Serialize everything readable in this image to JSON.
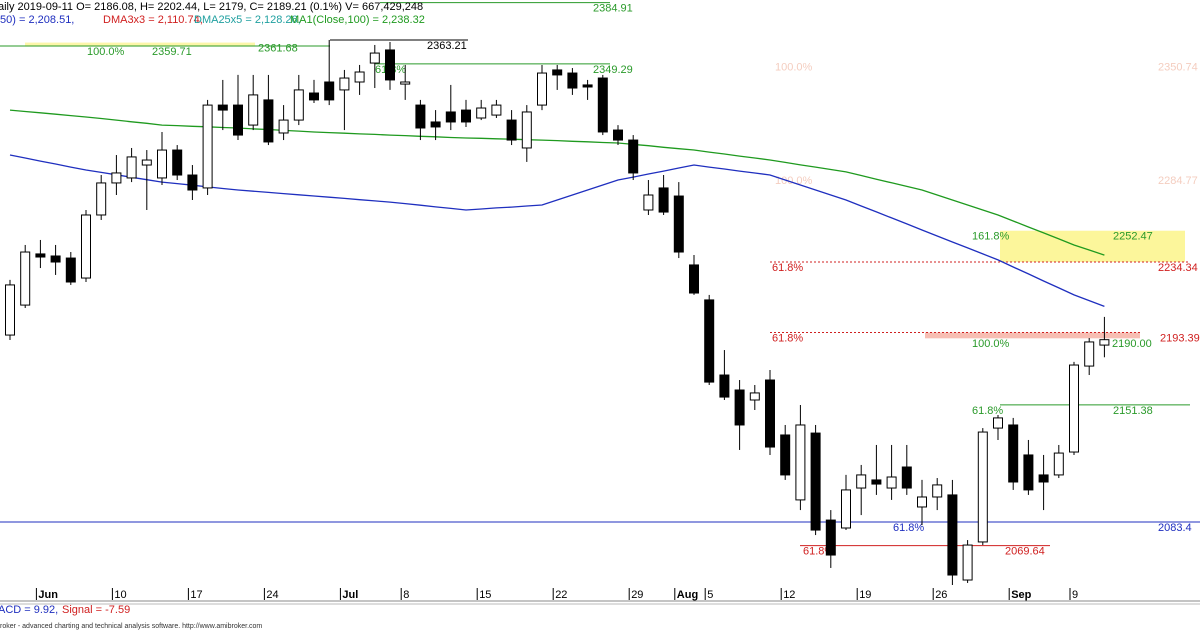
{
  "chart_data": {
    "type": "candlestick",
    "header": {
      "quote": "aily 2019-09-11 O= 2186.08, H= 2202.44, L= 2179, C= 2189.21 (0.1%) V= 667,429,248",
      "indicators": [
        {
          "text": ",50) = 2,208.51,",
          "color": "#1f2fbf"
        },
        {
          "text": "DMA3x3 = 2,110.74,",
          "color": "#d02020"
        },
        {
          "text": "DMA25x5 = 2,128.26,",
          "color": "#20a0a0"
        },
        {
          "text": "MA1(Close,100) = 2,238.32",
          "color": "#1f9a1f"
        }
      ]
    },
    "macd": [
      {
        "text": "ACD = 9.92,",
        "color": "#1f2fbf"
      },
      {
        "text": "Signal = -7.59",
        "color": "#d02020"
      }
    ],
    "footer": "roker - advanced charting and technical analysis software. http://www.amibroker.com",
    "categories": [
      null,
      null,
      "Jun",
      null,
      null,
      null,
      null,
      "10",
      null,
      null,
      null,
      null,
      "17",
      null,
      null,
      null,
      null,
      "24",
      null,
      null,
      null,
      null,
      "Jul",
      null,
      null,
      null,
      "8",
      null,
      null,
      null,
      null,
      "15",
      null,
      null,
      null,
      null,
      "22",
      null,
      null,
      null,
      null,
      "29",
      null,
      null,
      "Aug",
      null,
      "5",
      null,
      null,
      null,
      null,
      "12",
      null,
      null,
      null,
      null,
      "19",
      null,
      null,
      null,
      null,
      "26",
      null,
      null,
      null,
      null,
      "Sep",
      null,
      null,
      null,
      "9",
      null,
      null
    ],
    "open": [
      2191.9,
      2209.3,
      2239.0,
      2237.8,
      2236.6,
      2225.0,
      2261.6,
      2280.2,
      2283.1,
      2290.6,
      2283.1,
      2299.3,
      2284.8,
      2277.3,
      2325.4,
      2325.4,
      2313.8,
      2328.4,
      2309.2,
      2316.7,
      2332.4,
      2338.8,
      2334.2,
      2338.8,
      2349.8,
      2357.4,
      2337.6,
      2325.4,
      2315.6,
      2321.4,
      2322.5,
      2317.9,
      2319.6,
      2316.7,
      2300.5,
      2325.4,
      2345.8,
      2344.0,
      2337.1,
      2341.1,
      2310.9,
      2305.1,
      2264.5,
      2277.3,
      2272.6,
      2232.6,
      2212.3,
      2168.7,
      2160.0,
      2154.2,
      2165.8,
      2133.9,
      2096.2,
      2135.0,
      2084.5,
      2079.9,
      2103.1,
      2107.8,
      2103.1,
      2115.3,
      2092.1,
      2097.9,
      2099.1,
      2049.7,
      2071.8,
      2137.9,
      2139.7,
      2122.3,
      2110.7,
      2110.7,
      2124.0,
      2173.9,
      2186.08
    ],
    "high": [
      2223.9,
      2244.2,
      2247.1,
      2244.2,
      2240.1,
      2264.5,
      2284.8,
      2296.4,
      2300.5,
      2299.3,
      2309.8,
      2302.2,
      2290.6,
      2328.4,
      2340.0,
      2342.9,
      2342.9,
      2342.9,
      2325.4,
      2342.9,
      2340.0,
      2363.2,
      2345.8,
      2348.7,
      2360.3,
      2362.0,
      2348.7,
      2328.4,
      2322.5,
      2337.1,
      2328.4,
      2328.4,
      2328.4,
      2322.5,
      2325.4,
      2348.7,
      2348.7,
      2346.9,
      2340.0,
      2342.9,
      2313.8,
      2308.0,
      2281.9,
      2284.8,
      2280.7,
      2238.4,
      2215.2,
      2183.2,
      2165.8,
      2162.9,
      2171.6,
      2139.7,
      2151.3,
      2139.7,
      2090.3,
      2110.7,
      2116.5,
      2128.1,
      2128.1,
      2128.1,
      2107.8,
      2108.9,
      2107.8,
      2072.9,
      2137.9,
      2145.5,
      2143.8,
      2131.0,
      2122.3,
      2128.1,
      2176.3,
      2190.2,
      2202.44
    ],
    "low": [
      2189.0,
      2207.6,
      2230.8,
      2226.8,
      2221.0,
      2222.7,
      2258.7,
      2273.2,
      2280.7,
      2264.5,
      2279.0,
      2281.9,
      2270.3,
      2273.2,
      2310.9,
      2305.1,
      2310.9,
      2302.2,
      2305.1,
      2313.8,
      2326.6,
      2325.4,
      2310.9,
      2331.3,
      2335.3,
      2334.2,
      2328.4,
      2305.1,
      2305.1,
      2310.9,
      2312.7,
      2316.7,
      2317.9,
      2302.2,
      2292.4,
      2322.5,
      2334.2,
      2331.3,
      2328.4,
      2308.0,
      2302.2,
      2281.9,
      2261.6,
      2261.6,
      2236.6,
      2215.2,
      2162.9,
      2154.2,
      2125.2,
      2148.4,
      2122.3,
      2107.8,
      2090.3,
      2075.8,
      2056.7,
      2078.7,
      2087.4,
      2099.1,
      2096.2,
      2099.1,
      2081.6,
      2090.3,
      2046.8,
      2048.0,
      2070.0,
      2131.0,
      2102.0,
      2099.1,
      2090.3,
      2108.9,
      2122.3,
      2168.7,
      2179
    ],
    "close": [
      2221.0,
      2240.1,
      2237.2,
      2234.3,
      2222.7,
      2261.6,
      2280.2,
      2286.0,
      2295.3,
      2293.5,
      2299.3,
      2284.8,
      2276.1,
      2325.4,
      2322.5,
      2308.0,
      2331.3,
      2304.0,
      2316.7,
      2334.2,
      2328.4,
      2328.4,
      2341.1,
      2344.6,
      2355.6,
      2340.0,
      2338.8,
      2312.1,
      2312.7,
      2315.6,
      2315.6,
      2323.7,
      2325.4,
      2305.1,
      2321.4,
      2344.0,
      2342.9,
      2335.3,
      2335.9,
      2309.8,
      2305.1,
      2286.0,
      2273.2,
      2263.3,
      2240.1,
      2216.3,
      2164.6,
      2155.9,
      2139.7,
      2158.3,
      2126.9,
      2110.7,
      2139.7,
      2078.7,
      2064.2,
      2102.0,
      2110.7,
      2105.4,
      2109.5,
      2103.1,
      2097.9,
      2104.9,
      2052.6,
      2070.0,
      2135.6,
      2143.8,
      2106.6,
      2102.0,
      2106.6,
      2123.4,
      2174.5,
      2187.9,
      2189.21
    ],
    "lines": [
      {
        "color": "#1f9a1f",
        "values": [
          2322.5,
          2321.7,
          2320.9,
          2320.1,
          2319.3,
          2318.5,
          2317.6,
          2316.7,
          2315.7,
          2314.8,
          2313.8,
          2313.5,
          2313.1,
          2312.8,
          2312.4,
          2312.1,
          2311.6,
          2311.2,
          2310.7,
          2310.3,
          2309.8,
          2309.4,
          2309.1,
          2308.7,
          2308.4,
          2308.0,
          2307.7,
          2307.3,
          2307.0,
          2306.6,
          2306.3,
          2306.1,
          2305.8,
          2305.6,
          2305.3,
          2305.1,
          2304.8,
          2304.4,
          2304.1,
          2303.7,
          2303.4,
          2302.6,
          2301.8,
          2300.9,
          2300.1,
          2299.3,
          2298.1,
          2297.0,
          2295.8,
          2294.7,
          2293.5,
          2292.1,
          2290.7,
          2289.4,
          2288.0,
          2286.6,
          2284.5,
          2282.4,
          2280.3,
          2278.2,
          2276.1,
          2273.2,
          2270.3,
          2267.4,
          2264.5,
          2261.6,
          2258.1,
          2254.6,
          2251.2,
          2247.7,
          2244.2,
          2241.3,
          2238.32
        ]
      },
      {
        "color": "#1f2fbf",
        "values": [
          2296.4,
          2294.7,
          2292.9,
          2291.2,
          2289.4,
          2287.7,
          2286.3,
          2284.9,
          2283.5,
          2282.1,
          2280.7,
          2279.8,
          2278.9,
          2277.9,
          2277.0,
          2276.1,
          2275.4,
          2274.7,
          2274.0,
          2273.3,
          2272.6,
          2271.9,
          2271.2,
          2270.5,
          2269.8,
          2269.1,
          2268.2,
          2267.3,
          2266.3,
          2265.4,
          2264.5,
          2265.1,
          2265.7,
          2266.2,
          2266.8,
          2267.4,
          2270.3,
          2273.2,
          2276.1,
          2279.0,
          2281.9,
          2283.6,
          2285.4,
          2287.1,
          2288.9,
          2290.6,
          2289.4,
          2288.3,
          2287.1,
          2286.0,
          2284.8,
          2281.9,
          2279.0,
          2276.1,
          2273.2,
          2270.3,
          2266.8,
          2263.4,
          2259.9,
          2256.4,
          2252.9,
          2249.4,
          2245.9,
          2242.5,
          2239.0,
          2235.5,
          2231.4,
          2227.4,
          2223.3,
          2219.3,
          2215.2,
          2211.9,
          2208.51
        ]
      }
    ],
    "levels": [
      {
        "value": 2384.91,
        "color": "#2a9a2a"
      },
      {
        "pct": "100.0%",
        "value": 2359.71,
        "color": "#2a9a2a"
      },
      {
        "value": 2361.68,
        "color": "#2a9a2a"
      },
      {
        "value": 2363.21,
        "color": "#000000"
      },
      {
        "pct": "61.8%",
        "value": 2349.29,
        "color": "#2a9a2a"
      },
      {
        "pct": "100.0%",
        "value": 2350.74,
        "color": "#f4cdbf"
      },
      {
        "pct": "100.0%",
        "value": 2284.77,
        "color": "#f4cdbf"
      },
      {
        "pct": "161.8%",
        "value": 2252.47,
        "color": "#2a9a2a"
      },
      {
        "pct": "61.8%",
        "value": 2234.34,
        "color": "#d02020"
      },
      {
        "pct": "61.8%",
        "value": 2193.39,
        "color": "#d02020"
      },
      {
        "pct": "100.0%",
        "value": {
          "value": 2190,
          "label": "2190.00"
        },
        "color": "#2a9a2a"
      },
      {
        "pct": "61.8%",
        "value": 2151.38,
        "color": "#2a9a2a"
      },
      {
        "pct": "61.8%",
        "value": 2083.4,
        "color": "#1f2fbf"
      },
      {
        "pct": "61.8%",
        "value": 2069.64,
        "color": "#d02020"
      }
    ],
    "ylim": [
      2038.1,
      2386.4
    ]
  }
}
